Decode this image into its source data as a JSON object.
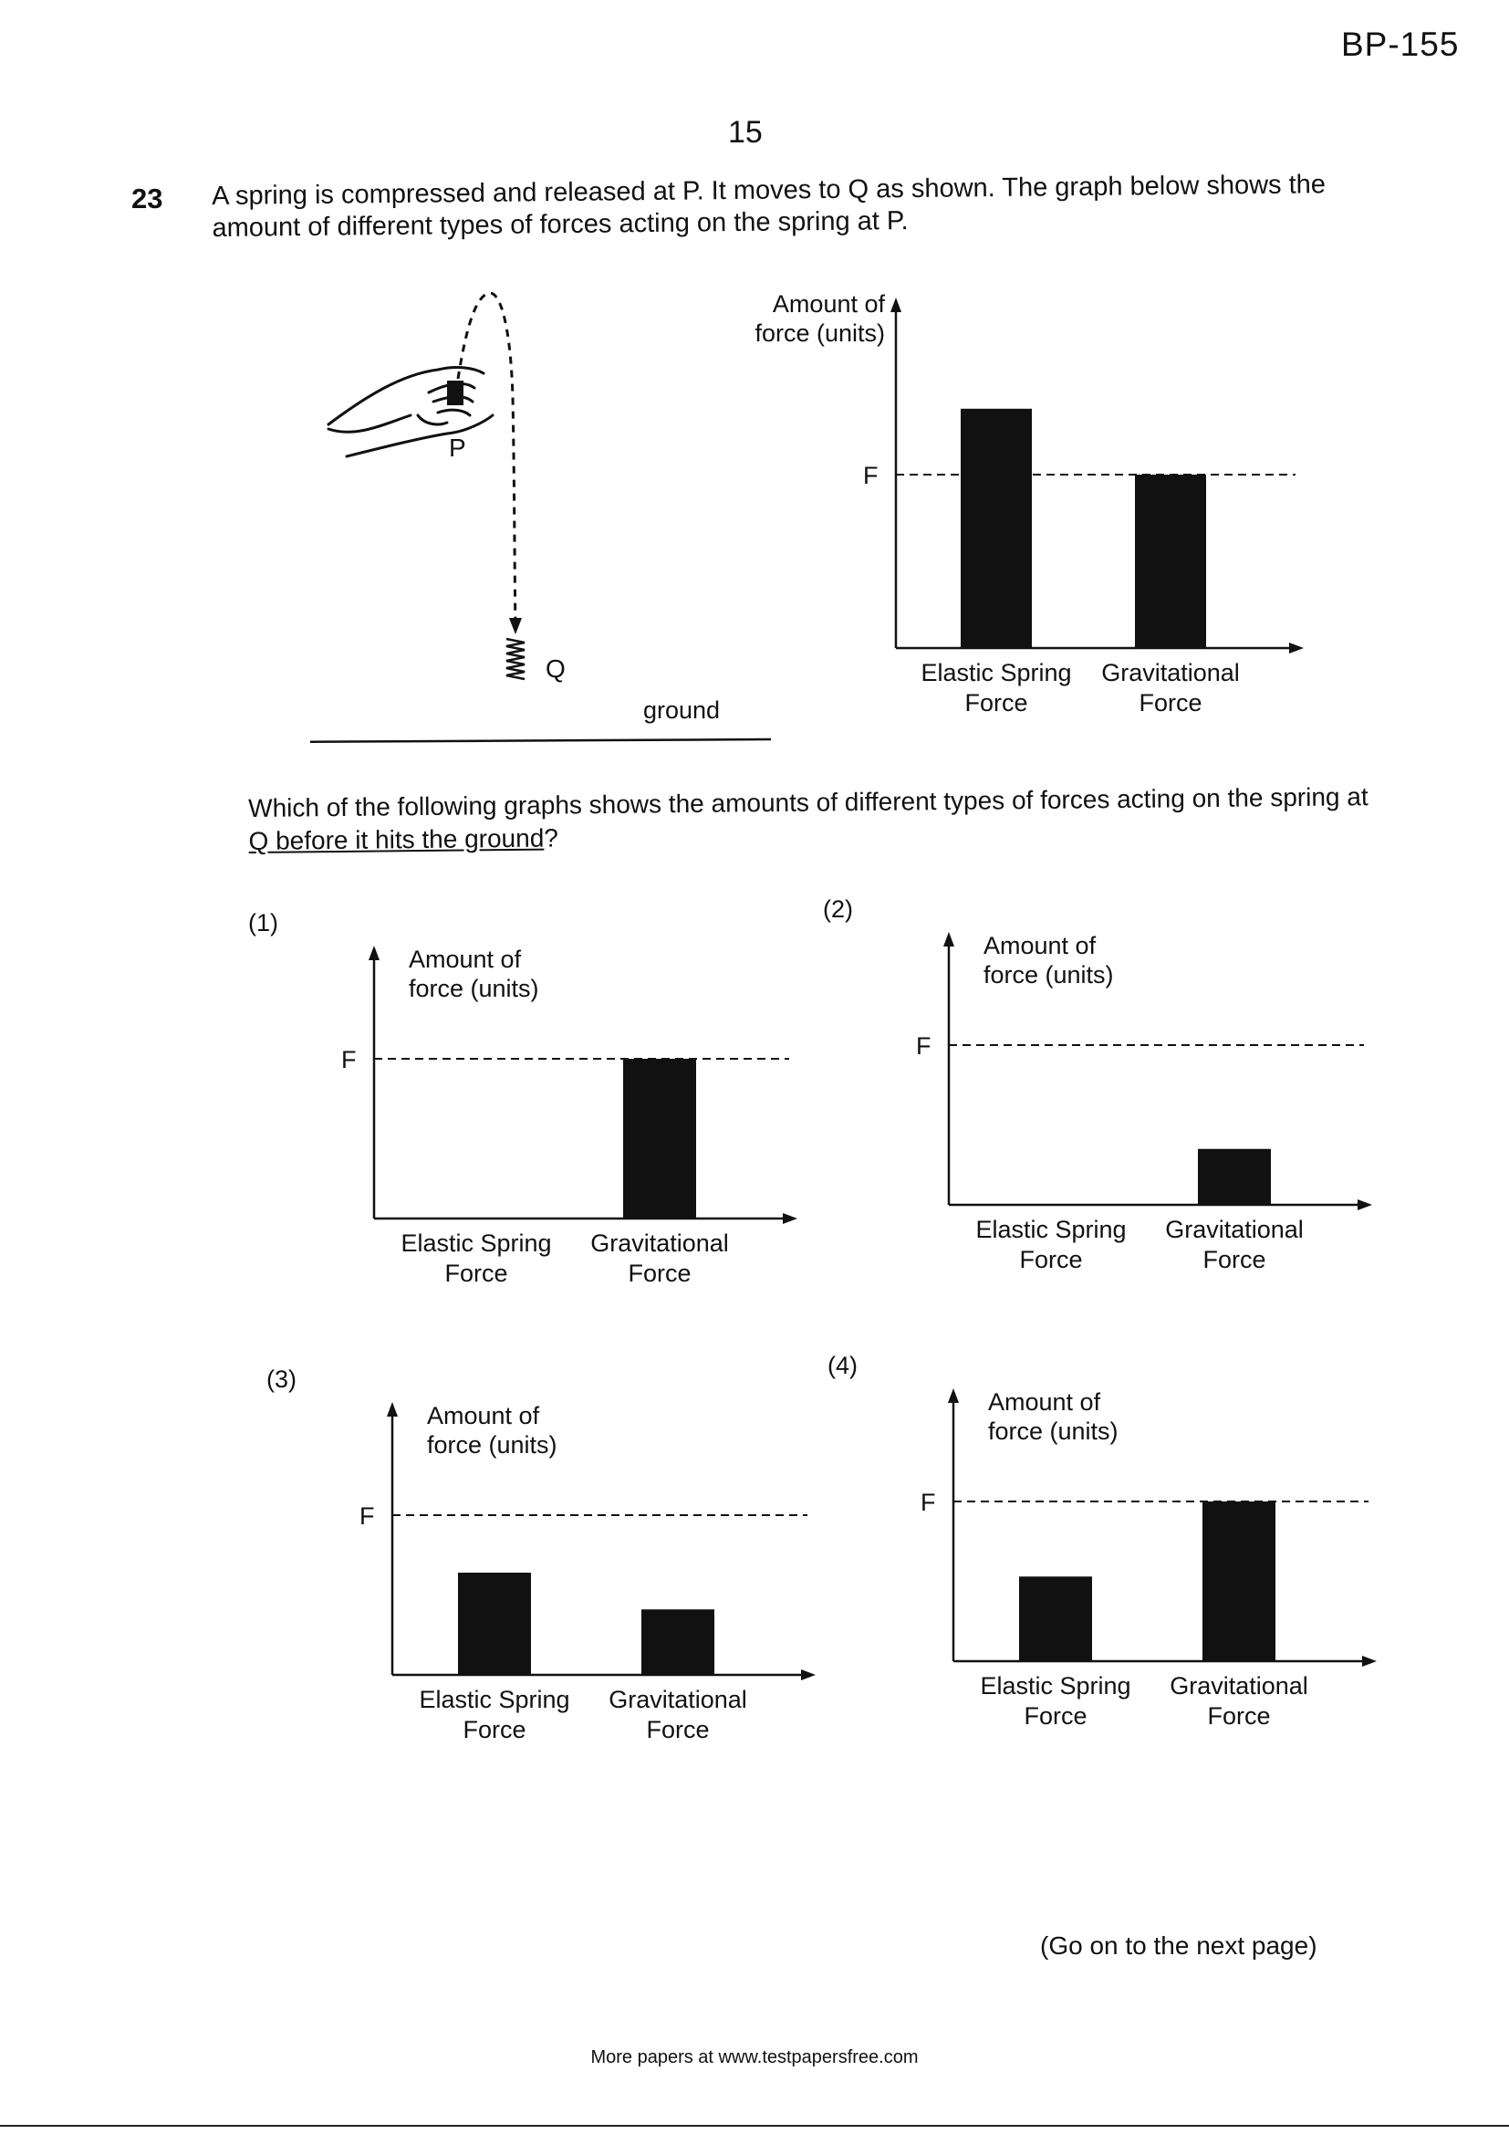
{
  "header": {
    "paper_code": "BP-155",
    "page_number": "15"
  },
  "question": {
    "number": "23",
    "stem": "A spring is compressed and released at P. It moves to Q as shown. The graph below shows the amount of different types of forces acting on the spring at P.",
    "sub_question_before": "Which of the following graphs shows the amounts of different types of forces acting on the spring at ",
    "sub_question_underlined": "Q before it hits the ground",
    "sub_question_after": "?"
  },
  "illustration": {
    "label_p": "P",
    "label_q": "Q",
    "ground_label": "ground"
  },
  "chart_data": [
    {
      "id": "reference",
      "type": "bar",
      "option_label": "",
      "ylabel": "Amount of force (units)",
      "reference_line_label": "F",
      "categories": [
        "Elastic Spring Force",
        "Gravitational Force"
      ],
      "values_relative_to_F": [
        1.38,
        1.0
      ]
    },
    {
      "id": "option-1",
      "type": "bar",
      "option_label": "(1)",
      "ylabel": "Amount of force (units)",
      "reference_line_label": "F",
      "categories": [
        "Elastic Spring Force",
        "Gravitational Force"
      ],
      "values_relative_to_F": [
        0.0,
        1.0
      ]
    },
    {
      "id": "option-2",
      "type": "bar",
      "option_label": "(2)",
      "ylabel": "Amount of force (units)",
      "reference_line_label": "F",
      "categories": [
        "Elastic Spring Force",
        "Gravitational Force"
      ],
      "values_relative_to_F": [
        0.0,
        0.35
      ]
    },
    {
      "id": "option-3",
      "type": "bar",
      "option_label": "(3)",
      "ylabel": "Amount of force (units)",
      "reference_line_label": "F",
      "categories": [
        "Elastic Spring Force",
        "Gravitational Force"
      ],
      "values_relative_to_F": [
        0.64,
        0.41
      ]
    },
    {
      "id": "option-4",
      "type": "bar",
      "option_label": "(4)",
      "ylabel": "Amount of force (units)",
      "reference_line_label": "F",
      "categories": [
        "Elastic Spring Force",
        "Gravitational Force"
      ],
      "values_relative_to_F": [
        0.53,
        1.0
      ]
    }
  ],
  "footer": {
    "continue_note": "(Go on to the next page)",
    "credit": "More papers at www.testpapersfree.com"
  },
  "colors": {
    "ink": "#111111",
    "paper": "#ffffff"
  }
}
